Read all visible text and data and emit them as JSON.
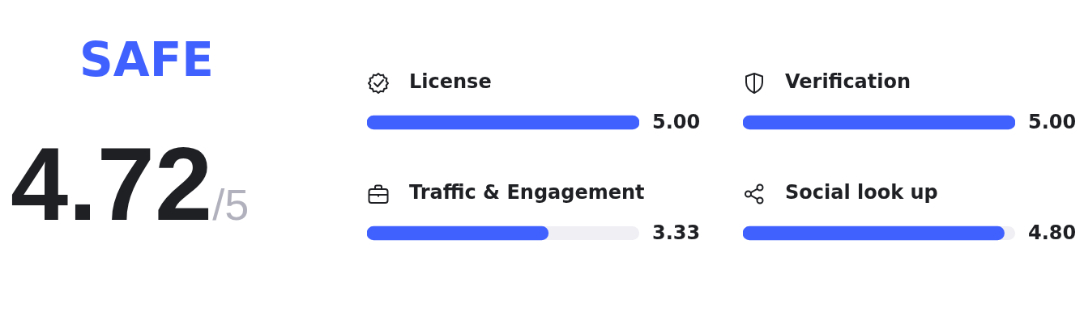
{
  "chart_data": [
    {
      "type": "other",
      "title": "SAFE",
      "annotations": [
        "4.72",
        "/5"
      ]
    },
    {
      "type": "bar",
      "orientation": "horizontal",
      "categories": [
        "License",
        "Traffic & Engagement"
      ],
      "values": [
        5,
        3.33
      ],
      "value_labels": [
        "5.00",
        "3.33"
      ],
      "color": "#4161ff",
      "xlim": [
        0,
        5
      ],
      "tick_labels": "y"
    },
    {
      "type": "bar",
      "orientation": "horizontal",
      "categories": [
        "Verification",
        "Social look up"
      ],
      "values": [
        5,
        4.8
      ],
      "value_labels": [
        "5.00",
        "4.80"
      ],
      "color": "#4161ff",
      "xlim": [
        0,
        5
      ],
      "tick_labels": "y"
    }
  ]
}
